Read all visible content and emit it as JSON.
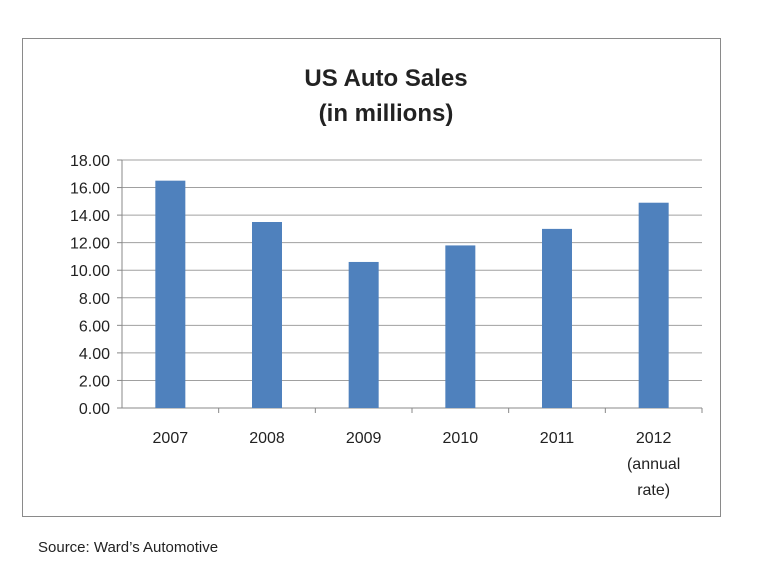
{
  "chart_data": {
    "type": "bar",
    "title": [
      "US Auto Sales",
      "(in millions)"
    ],
    "categories": [
      [
        "2007"
      ],
      [
        "2008"
      ],
      [
        "2009"
      ],
      [
        "2010"
      ],
      [
        "2011"
      ],
      [
        "2012",
        "(annual",
        "rate)"
      ]
    ],
    "values": [
      16.5,
      13.5,
      10.6,
      11.8,
      13.0,
      14.9
    ],
    "ylim": [
      0,
      18
    ],
    "yticks": [
      "0.00",
      "2.00",
      "4.00",
      "6.00",
      "8.00",
      "10.00",
      "12.00",
      "14.00",
      "16.00",
      "18.00"
    ],
    "xlabel": "",
    "ylabel": "",
    "grid": true,
    "bar_color": "#4f81bd"
  },
  "source": "Source: Ward’s Automotive"
}
